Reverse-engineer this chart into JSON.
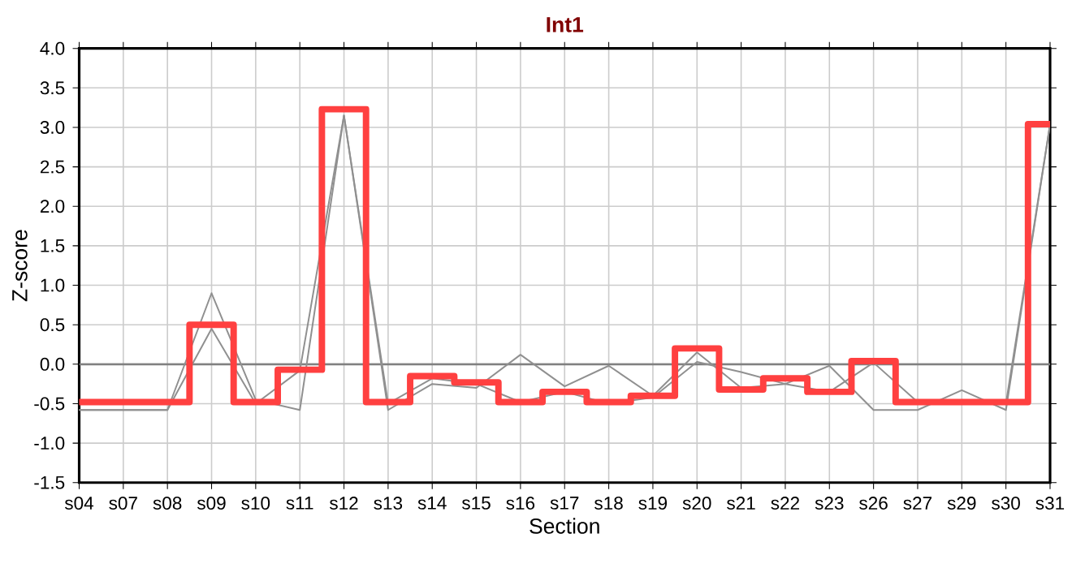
{
  "chart_data": {
    "type": "line",
    "title": "Int1",
    "xlabel": "Section",
    "ylabel": "Z-score",
    "categories": [
      "s04",
      "s07",
      "s08",
      "s09",
      "s10",
      "s11",
      "s12",
      "s13",
      "s14",
      "s15",
      "s16",
      "s17",
      "s18",
      "s19",
      "s20",
      "s21",
      "s22",
      "s23",
      "s26",
      "s27",
      "s29",
      "s30",
      "s31"
    ],
    "series": [
      {
        "color": "#909090",
        "values": [
          -0.58,
          -0.58,
          -0.58,
          0.9,
          -0.45,
          -0.58,
          3.15,
          -0.58,
          -0.25,
          -0.3,
          0.12,
          -0.28,
          -0.02,
          -0.4,
          0.15,
          -0.3,
          -0.25,
          -0.02,
          -0.58,
          -0.58,
          -0.33,
          -0.58,
          3.04
        ]
      },
      {
        "color": "#909090",
        "values": [
          -0.58,
          -0.58,
          -0.58,
          0.45,
          -0.5,
          -0.08,
          3.15,
          -0.5,
          -0.18,
          -0.25,
          -0.48,
          -0.35,
          -0.5,
          -0.42,
          0.03,
          -0.1,
          -0.25,
          -0.35,
          0.02,
          -0.48,
          -0.5,
          -0.5,
          3.04
        ]
      },
      {
        "type": "step",
        "color": "#ff4040",
        "values": [
          -0.48,
          -0.48,
          -0.48,
          0.5,
          -0.48,
          -0.07,
          3.23,
          -0.48,
          -0.15,
          -0.23,
          -0.48,
          -0.35,
          -0.48,
          -0.4,
          0.2,
          -0.32,
          -0.18,
          -0.35,
          0.04,
          -0.48,
          -0.48,
          -0.48,
          3.04
        ]
      }
    ],
    "ylim": [
      -1.5,
      4.0
    ],
    "yticks": [
      {
        "value": -1.5,
        "label": "-1.5"
      },
      {
        "value": -1.0,
        "label": "-1.0"
      },
      {
        "value": -0.5,
        "label": "-0.5"
      },
      {
        "value": 0.0,
        "label": "0.0"
      },
      {
        "value": 0.5,
        "label": "0.5"
      },
      {
        "value": 1.0,
        "label": "1.0"
      },
      {
        "value": 1.5,
        "label": "1.5"
      },
      {
        "value": 2.0,
        "label": "2.0"
      },
      {
        "value": 2.5,
        "label": "2.5"
      },
      {
        "value": 3.0,
        "label": "3.0"
      },
      {
        "value": 3.5,
        "label": "3.5"
      },
      {
        "value": 4.0,
        "label": "4.0"
      }
    ],
    "ref_lines": [
      {
        "axis": "y",
        "value": 0,
        "color": "#808080"
      }
    ],
    "grid": true
  }
}
